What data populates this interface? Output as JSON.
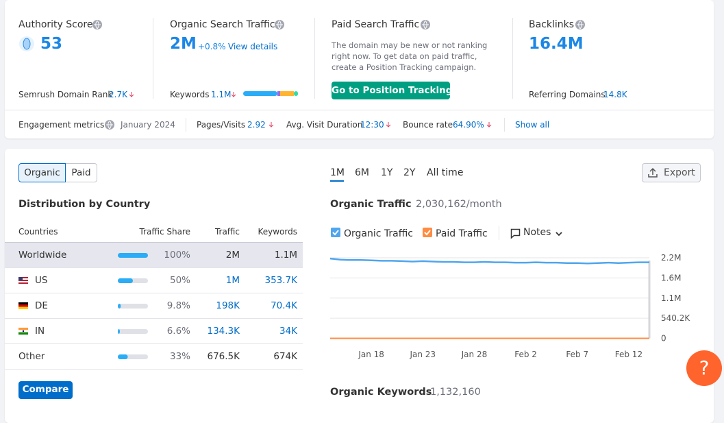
{
  "summary": {
    "authority": {
      "label": "Authority Score",
      "value": "53",
      "rank_label": "Semrush Domain Rank",
      "rank_value": "2.7K"
    },
    "organic": {
      "label": "Organic Search Traffic",
      "value": "2M",
      "change": "+0.8%",
      "link": "View details",
      "keywords_label": "Keywords",
      "keywords_value": "1.1M"
    },
    "paid": {
      "label": "Paid Search Traffic",
      "message_lines": [
        "The domain may be new or not ranking",
        "right now. To get data on paid traffic,",
        "create a Position Tracking campaign."
      ],
      "button": "Go to Position Tracking"
    },
    "backlinks": {
      "label": "Backlinks",
      "value": "16.4M",
      "domains_label": "Referring Domains",
      "domains_value": "14.8K"
    }
  },
  "engagement": {
    "label": "Engagement metrics",
    "date": "January 2024",
    "metrics": [
      {
        "label": "Pages/Visits",
        "value": "2.92"
      },
      {
        "label": "Avg. Visit Duration",
        "value": "12:30"
      },
      {
        "label": "Bounce rate",
        "value": "64.90%"
      }
    ],
    "link": "Show all"
  },
  "distribution": {
    "tabs": [
      "Organic",
      "Paid"
    ],
    "title": "Distribution by Country",
    "columns": [
      "Countries",
      "Traffic Share",
      "Traffic",
      "Keywords"
    ],
    "rows": [
      {
        "country": "Worldwide",
        "share": {
          "value": 100,
          "label": "100%"
        },
        "traffic": "2M",
        "keywords": "1.1M"
      },
      {
        "country": "US",
        "share": {
          "value": 50,
          "label": "50%"
        },
        "traffic": "1M",
        "keywords": "353.7K"
      },
      {
        "country": "DE",
        "share": {
          "value": 9.8,
          "label": "9.8%"
        },
        "traffic": "198K",
        "keywords": "70.4K"
      },
      {
        "country": "IN",
        "share": {
          "value": 6.6,
          "label": "6.6%"
        },
        "traffic": "134.3K",
        "keywords": "34K"
      },
      {
        "country": "Other",
        "share": {
          "value": 33,
          "label": "33%"
        },
        "traffic": "676.5K",
        "keywords": "674K"
      }
    ],
    "button": "Compare"
  },
  "periods": [
    "1M",
    "6M",
    "1Y",
    "2Y",
    "All time"
  ],
  "export": "Export",
  "notes": "Notes",
  "chart_data": {
    "type": "line",
    "title": "Organic Traffic",
    "subtitle": "2,030,162/month",
    "categories": [
      null,
      null,
      null,
      null,
      "Jan 18",
      null,
      null,
      null,
      null,
      "Jan 23",
      null,
      null,
      null,
      null,
      "Jan 28",
      null,
      null,
      null,
      null,
      "Feb 2",
      null,
      null,
      null,
      null,
      "Feb 7",
      null,
      null,
      null,
      null,
      "Feb 12",
      null,
      null
    ],
    "series": [
      {
        "name": "Organic Traffic",
        "color": "#4fa6ee",
        "values": [
          2140000,
          2110000,
          2100000,
          2100000,
          2090000,
          2080000,
          2080000,
          2070000,
          2060000,
          2070000,
          2060000,
          2050000,
          2050000,
          2040000,
          2040000,
          2050000,
          2040000,
          2040000,
          2030000,
          2030000,
          2040000,
          2030000,
          2030000,
          2020000,
          2020000,
          2010000,
          2020000,
          2030000,
          2020000,
          2030000,
          2040000,
          2040000
        ]
      },
      {
        "name": "Paid Traffic",
        "color": "#ff8c42",
        "values": [
          0,
          0,
          0,
          0,
          0,
          0,
          0,
          0,
          0,
          0,
          0,
          0,
          0,
          0,
          0,
          0,
          0,
          0,
          0,
          0,
          0,
          0,
          0,
          0,
          0,
          0,
          0,
          0,
          0,
          0,
          0,
          0
        ]
      }
    ],
    "ylim": [
      0,
      2160800
    ],
    "yticks": [
      0,
      {
        "value": 540200,
        "label": "540.2K"
      },
      {
        "value": 1080400,
        "label": "1.1M"
      },
      {
        "value": 1620600,
        "label": "1.6M"
      },
      {
        "value": 2160800,
        "label": "2.2M"
      }
    ],
    "grid": true
  },
  "next_section": {
    "title": "Organic Keywords",
    "value": "1,132,160"
  },
  "help": "?"
}
